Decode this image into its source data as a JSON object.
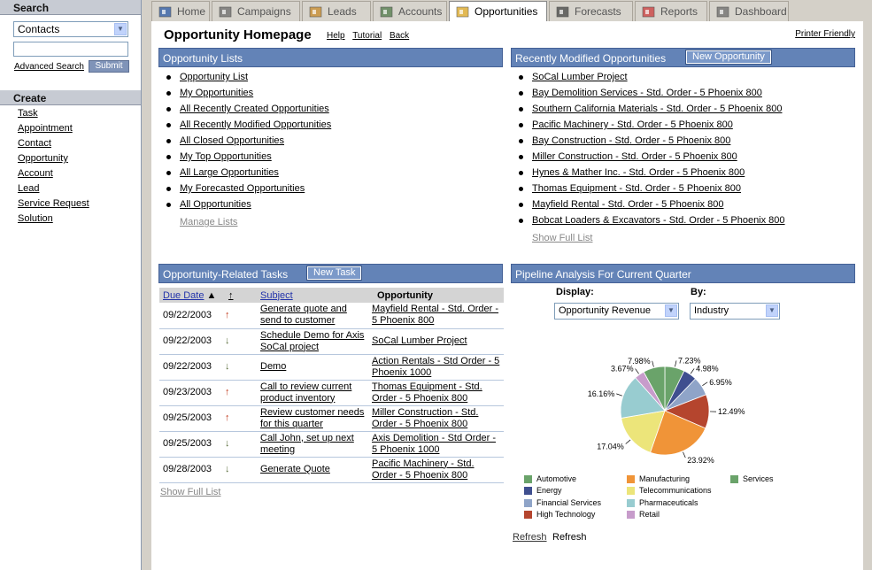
{
  "sidebar": {
    "search_title": "Search",
    "search_select_value": "Contacts",
    "advanced_search": "Advanced Search",
    "submit": "Submit",
    "create_title": "Create",
    "create_items": [
      "Task",
      "Appointment",
      "Contact",
      "Opportunity",
      "Account",
      "Lead",
      "Service Request",
      "Solution"
    ]
  },
  "tabs": [
    {
      "label": "Home",
      "icon": "home-icon"
    },
    {
      "label": "Campaigns",
      "icon": "campaigns-icon"
    },
    {
      "label": "Leads",
      "icon": "leads-icon"
    },
    {
      "label": "Accounts",
      "icon": "accounts-icon"
    },
    {
      "label": "Opportunities",
      "icon": "opportunities-icon",
      "active": true
    },
    {
      "label": "Forecasts",
      "icon": "forecasts-icon"
    },
    {
      "label": "Reports",
      "icon": "reports-icon"
    },
    {
      "label": "Dashboard",
      "icon": "dashboard-icon"
    }
  ],
  "header": {
    "title": "Opportunity Homepage",
    "help": "Help",
    "tutorial": "Tutorial",
    "back": "Back",
    "printer": "Printer Friendly"
  },
  "lists": {
    "title": "Opportunity Lists",
    "items": [
      "Opportunity List",
      "My Opportunities",
      "All Recently Created Opportunities",
      "All Recently Modified Opportunities",
      "All Closed Opportunities",
      "My Top Opportunities",
      "All Large Opportunities",
      "My Forecasted Opportunities",
      "All Opportunities"
    ],
    "manage": "Manage Lists"
  },
  "recent": {
    "title": "Recently Modified Opportunities",
    "new_button": "New Opportunity",
    "items": [
      "SoCal Lumber Project",
      "Bay Demolition Services - Std. Order - 5 Phoenix 800",
      "Southern California Materials - Std. Order - 5 Phoenix 800",
      "Pacific Machinery - Std. Order - 5 Phoenix 800",
      "Bay Construction - Std. Order - 5 Phoenix 800",
      "Miller Construction - Std. Order - 5 Phoenix 800",
      "Hynes & Mather Inc. - Std. Order - 5 Phoenix 800",
      "Thomas Equipment - Std. Order - 5 Phoenix 800",
      "Mayfield Rental - Std. Order - 5 Phoenix 800",
      "Bobcat Loaders & Excavators - Std. Order - 5 Phoenix 800"
    ],
    "show_full": "Show Full List"
  },
  "tasks": {
    "title": "Opportunity-Related Tasks",
    "new_button": "New Task",
    "columns": {
      "due": "Due Date",
      "prio": "↑",
      "subject": "Subject",
      "opportunity": "Opportunity"
    },
    "sort_arrow": "▲",
    "rows": [
      {
        "date": "09/22/2003",
        "prio": "↑",
        "dir": "up",
        "subject": "Generate quote and send to customer",
        "opp": "Mayfield Rental - Std. Order - 5 Phoenix 800"
      },
      {
        "date": "09/22/2003",
        "prio": "↓",
        "dir": "down",
        "subject": "Schedule Demo for Axis SoCal project",
        "opp": "SoCal Lumber Project"
      },
      {
        "date": "09/22/2003",
        "prio": "↓",
        "dir": "down",
        "subject": "Demo",
        "opp": "Action Rentals - Std Order - 5 Phoenix 1000"
      },
      {
        "date": "09/23/2003",
        "prio": "↑",
        "dir": "up",
        "subject": "Call to review current product inventory",
        "opp": "Thomas Equipment - Std. Order - 5 Phoenix 800"
      },
      {
        "date": "09/25/2003",
        "prio": "↑",
        "dir": "up",
        "subject": "Review customer needs for this quarter",
        "opp": "Miller Construction - Std. Order - 5 Phoenix 800"
      },
      {
        "date": "09/25/2003",
        "prio": "↓",
        "dir": "down",
        "subject": "Call John, set up next meeting",
        "opp": "Axis Demolition - Std Order - 5 Phoenix 1000"
      },
      {
        "date": "09/28/2003",
        "prio": "↓",
        "dir": "down",
        "subject": "Generate Quote",
        "opp": "Pacific Machinery - Std. Order - 5 Phoenix 800"
      }
    ],
    "show_full": "Show Full List"
  },
  "pipeline": {
    "title": "Pipeline Analysis For Current Quarter",
    "display_label": "Display:",
    "by_label": "By:",
    "display_value": "Opportunity Revenue",
    "by_value": "Industry",
    "refresh_link": "Refresh",
    "refresh_text": "Refresh"
  },
  "chart_data": {
    "type": "pie",
    "slices": [
      {
        "name": "Services",
        "value": 7.23,
        "label": "7.23%",
        "color": "#6aa36a"
      },
      {
        "name": "Energy",
        "value": 4.98,
        "label": "4.98%",
        "color": "#3f4f8f"
      },
      {
        "name": "Financial Services",
        "value": 6.95,
        "label": "6.95%",
        "color": "#8fa4c8"
      },
      {
        "name": "High Technology",
        "value": 12.49,
        "label": "12.49%",
        "color": "#b5452e"
      },
      {
        "name": "Manufacturing",
        "value": 23.92,
        "label": "23.92%",
        "color": "#f09438"
      },
      {
        "name": "Telecommunications",
        "value": 17.04,
        "label": "17.04%",
        "color": "#ece57a"
      },
      {
        "name": "Pharmaceuticals",
        "value": 16.16,
        "label": "16.16%",
        "color": "#98ccd0"
      },
      {
        "name": "Retail",
        "value": 3.67,
        "label": "3.67%",
        "color": "#c79ccb"
      },
      {
        "name": "Automotive",
        "value": 7.98,
        "label": "7.98%",
        "color": "#6aa36a"
      }
    ],
    "legend": [
      "Automotive",
      "Manufacturing",
      "Services",
      "Energy",
      "Telecommunications",
      "Financial Services",
      "Pharmaceuticals",
      "High Technology",
      "Retail"
    ],
    "legend_colors": {
      "Automotive": "#6aa36a",
      "Manufacturing": "#f09438",
      "Services": "#6aa36a",
      "Energy": "#3f4f8f",
      "Telecommunications": "#ece57a",
      "Financial Services": "#8fa4c8",
      "Pharmaceuticals": "#98ccd0",
      "High Technology": "#b5452e",
      "Retail": "#c79ccb"
    }
  }
}
